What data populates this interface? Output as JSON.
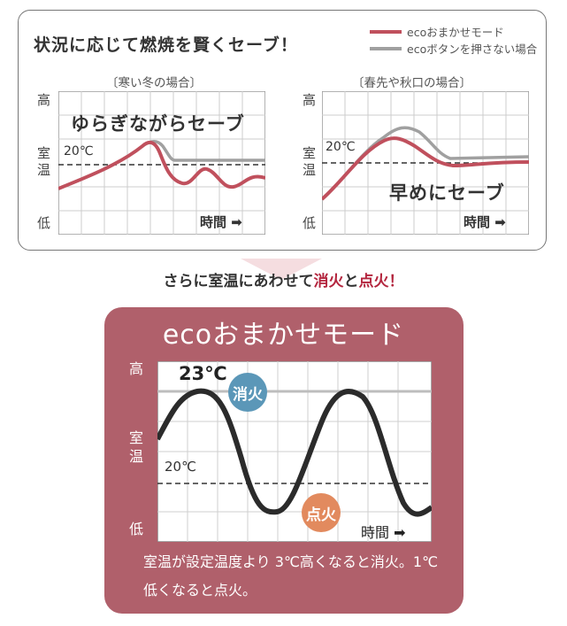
{
  "headline": "状況に応じて燃焼を賢くセーブ！",
  "legend": [
    {
      "label": "ecoおまかせモード",
      "color": "#c0505d"
    },
    {
      "label": "ecoボタンを押さない場合",
      "color": "#a0a0a0"
    }
  ],
  "left_chart": {
    "subtitle": "〔寒い冬の場合〕",
    "overlay": "ゆらぎながらセーブ",
    "temp_label": "20℃",
    "y_high": "高",
    "y_mid_1": "室",
    "y_mid_2": "温",
    "y_low": "低",
    "time_label": "時間 ➡"
  },
  "right_chart": {
    "subtitle": "〔春先や秋口の場合〕",
    "overlay": "早めにセーブ",
    "temp_label": "20℃",
    "y_high": "高",
    "y_mid_1": "室",
    "y_mid_2": "温",
    "y_low": "低",
    "time_label": "時間 ➡"
  },
  "middle": {
    "text_a": "さらに室温にあわせて",
    "highlight_a": "消火",
    "text_b": "と",
    "highlight_b": "点火",
    "text_c": "！"
  },
  "eco": {
    "title": "ecoおまかせモード",
    "y_high": "高",
    "y_mid_1": "室",
    "y_mid_2": "温",
    "y_low": "低",
    "label_23": "23℃",
    "label_20": "20℃",
    "bubble_off": "消火",
    "bubble_on": "点火",
    "time_label": "時間 ➡",
    "description": "室温が設定温度より 3℃高くなると消火。1℃低くなると点火。",
    "colors": {
      "panel": "#b0606b",
      "bubble_off": "#5b97b8",
      "bubble_on": "#e28a5e",
      "curve": "#2b2b2b"
    }
  }
}
